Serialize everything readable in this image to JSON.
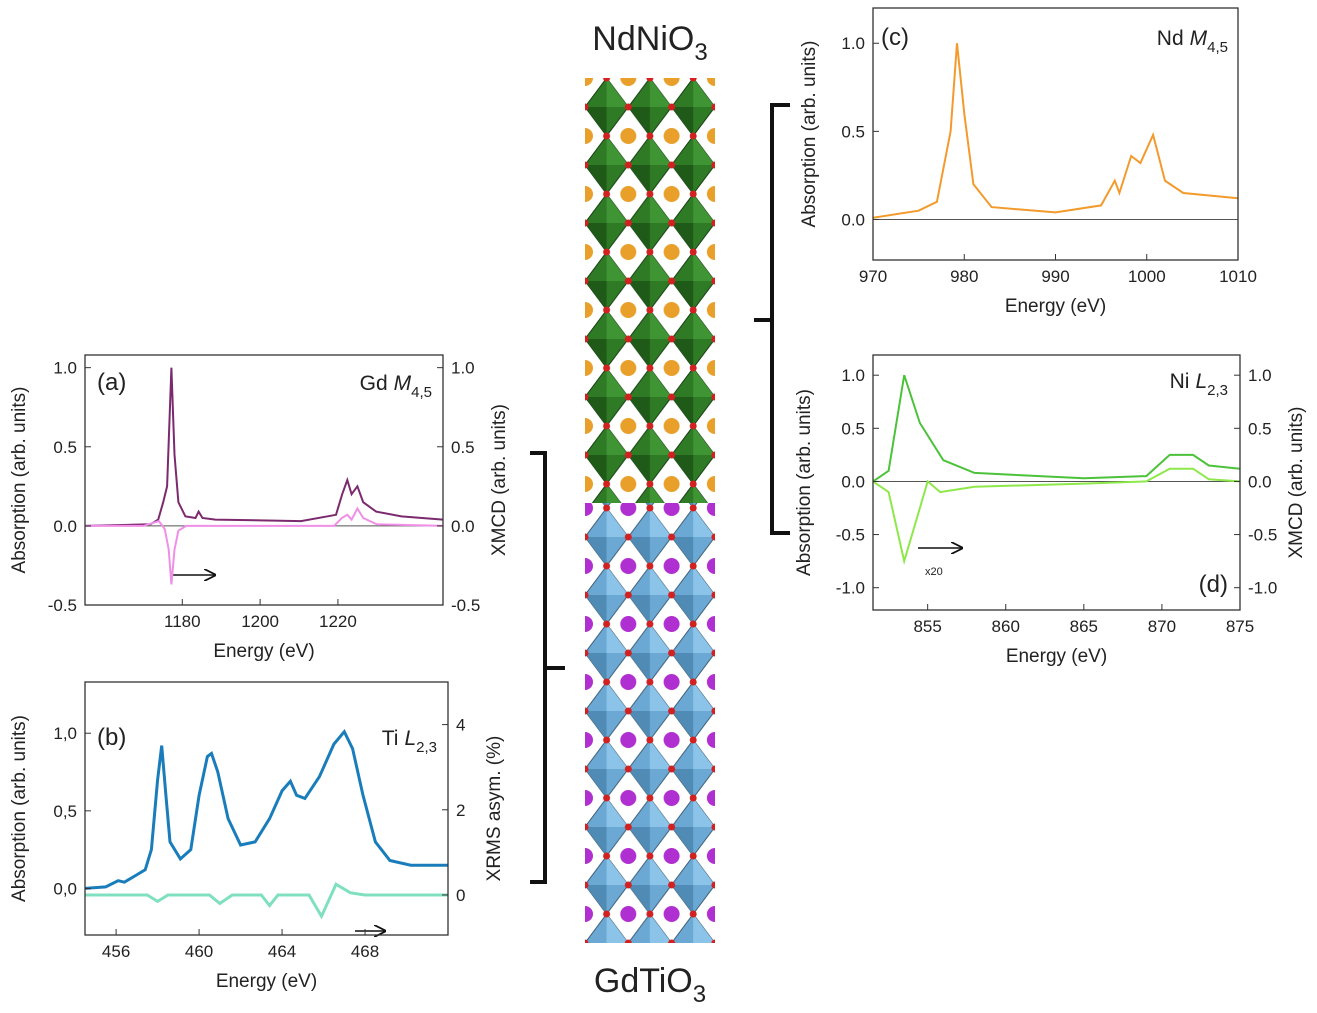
{
  "chart_data": [
    {
      "type": "line",
      "panel_label": "(a)",
      "edge_label": {
        "element": "Gd",
        "edge": "M",
        "subscript": "4,5"
      },
      "xlabel": "Energy (eV)",
      "ylabel": "Absorption (arb. units)",
      "y2label": "XMCD (arb. units)",
      "xlim": [
        1155,
        1247
      ],
      "xticks": [
        1180,
        1200,
        1220
      ],
      "ylim": [
        -0.5,
        1.08
      ],
      "yticks": [
        {
          "value": 1.0,
          "label": "1.0"
        },
        0.5,
        {
          "value": 0,
          "label": "0.0"
        },
        -0.5
      ],
      "y2lim": [
        -0.5,
        1.08
      ],
      "y2ticks": [
        {
          "value": 1.0,
          "label": "1.0"
        },
        0.5,
        {
          "value": 0,
          "label": "0.0"
        },
        -0.5
      ],
      "series": [
        {
          "color": "#7b2a6e",
          "x": [
            1155,
            1171.8,
            1173.8,
            1175.1,
            1176.1,
            1177.2,
            1178,
            1179,
            1180.8,
            1183.4,
            1184.2,
            1185.2,
            1188.5,
            1210.5,
            1219.5,
            1221.1,
            1222.4,
            1223.5,
            1225,
            1226.5,
            1229.8,
            1236.3,
            1247
          ],
          "values": [
            0.0,
            0.01,
            0.04,
            0.15,
            0.25,
            1.0,
            0.45,
            0.15,
            0.06,
            0.05,
            0.09,
            0.05,
            0.04,
            0.03,
            0.07,
            0.2,
            0.29,
            0.2,
            0.25,
            0.15,
            0.09,
            0.06,
            0.04
          ]
        },
        {
          "color": "#f08ee8",
          "axis": "y2",
          "x": [
            1155,
            1170,
            1174,
            1175.5,
            1176.5,
            1177.2,
            1178,
            1179,
            1181,
            1219,
            1221,
            1222.4,
            1223.5,
            1225,
            1226.5,
            1230,
            1247
          ],
          "values": [
            0.0,
            0.0,
            0.03,
            -0.02,
            -0.15,
            -0.37,
            -0.15,
            -0.03,
            0.0,
            0.0,
            0.05,
            0.07,
            0.04,
            0.11,
            0.05,
            0.01,
            0.0
          ]
        }
      ]
    },
    {
      "type": "line",
      "panel_label": "(b)",
      "edge_label": {
        "element": "Ti",
        "edge": "L",
        "subscript": "2,3"
      },
      "xlabel": "Energy (eV)",
      "ylabel": "Absorption (arb. units)",
      "y2label": "XRMS asym. (%)",
      "xlim": [
        454.5,
        472
      ],
      "xticks": [
        456,
        460,
        464,
        468
      ],
      "ylim": [
        -0.3,
        1.33
      ],
      "yticks": [
        {
          "value": 1.0,
          "label": "1,0"
        },
        {
          "value": 0.5,
          "label": "0,5"
        },
        {
          "value": 0,
          "label": "0,0"
        }
      ],
      "y2lim": [
        -0.94,
        5.0
      ],
      "y2ticks": [
        4,
        2,
        0
      ],
      "series": [
        {
          "color": "#1a7dbb",
          "x": [
            454.5,
            455.5,
            456.1,
            456.4,
            456.9,
            457.4,
            457.7,
            458.0,
            458.2,
            458.4,
            458.6,
            459.1,
            459.6,
            460.0,
            460.4,
            460.6,
            460.9,
            461.4,
            462.0,
            462.7,
            463.4,
            464.0,
            464.4,
            464.7,
            465.1,
            465.8,
            466.5,
            467.0,
            467.4,
            467.9,
            468.5,
            469.2,
            470.2,
            472
          ],
          "values": [
            0.0,
            0.01,
            0.05,
            0.04,
            0.08,
            0.12,
            0.25,
            0.7,
            0.92,
            0.6,
            0.3,
            0.19,
            0.25,
            0.6,
            0.85,
            0.87,
            0.75,
            0.45,
            0.28,
            0.3,
            0.45,
            0.63,
            0.69,
            0.6,
            0.58,
            0.72,
            0.93,
            1.01,
            0.9,
            0.6,
            0.3,
            0.18,
            0.15,
            0.15
          ]
        },
        {
          "color": "#7fe0c0",
          "axis": "y2",
          "x": [
            454.5,
            457.5,
            458.0,
            458.5,
            460.5,
            461.0,
            461.6,
            463.0,
            463.4,
            463.8,
            465.3,
            465.9,
            466.6,
            467.3,
            468.0,
            472
          ],
          "values": [
            0.0,
            0.0,
            -0.15,
            0.0,
            0.0,
            -0.2,
            0.0,
            0.0,
            -0.25,
            0.0,
            0.0,
            -0.5,
            0.25,
            0.05,
            0.0,
            0.0
          ]
        }
      ]
    },
    {
      "type": "line",
      "panel_label": "(c)",
      "edge_label": {
        "element": "Nd",
        "edge": "M",
        "subscript": "4,5"
      },
      "xlabel": "Energy (eV)",
      "ylabel": "Absorption (arb. units)",
      "xlim": [
        970,
        1010
      ],
      "xticks": [
        970,
        980,
        990,
        1000,
        1010
      ],
      "ylim": [
        -0.23,
        1.2
      ],
      "yticks": [
        {
          "value": 1.0,
          "label": "1.0"
        },
        0.5,
        {
          "value": 0,
          "label": "0.0"
        }
      ],
      "series": [
        {
          "color": "#f39a2c",
          "x": [
            970,
            975,
            977,
            978.5,
            979.2,
            980,
            981,
            983,
            990,
            995,
            996.5,
            997,
            998.3,
            999.3,
            1000.7,
            1002,
            1004,
            1010
          ],
          "values": [
            0.01,
            0.05,
            0.1,
            0.5,
            1.0,
            0.6,
            0.2,
            0.07,
            0.04,
            0.08,
            0.22,
            0.15,
            0.36,
            0.32,
            0.48,
            0.22,
            0.15,
            0.12
          ]
        }
      ]
    },
    {
      "type": "line",
      "panel_label": "(d)",
      "annotation": "x20",
      "edge_label": {
        "element": "Ni",
        "edge": "L",
        "subscript": "2,3"
      },
      "xlabel": "Energy (eV)",
      "ylabel": "Absorption (arb. units)",
      "y2label": "XMCD (arb. units)",
      "xlim": [
        851.5,
        875
      ],
      "xticks": [
        855,
        860,
        865,
        870,
        875
      ],
      "ylim": [
        -1.21,
        1.19
      ],
      "yticks": [
        {
          "value": 1.0,
          "label": "1.0"
        },
        0.5,
        {
          "value": 0,
          "label": "0.0"
        },
        -0.5,
        {
          "value": -1.0,
          "label": "-1.0"
        }
      ],
      "y2lim": [
        -1.21,
        1.19
      ],
      "y2ticks": [
        {
          "value": 1.0,
          "label": "1.0"
        },
        0.5,
        {
          "value": 0,
          "label": "0.0"
        },
        -0.5,
        {
          "value": -1.0,
          "label": "-1.0"
        }
      ],
      "series": [
        {
          "color": "#4cc23a",
          "x": [
            851.5,
            852.5,
            853.5,
            854.5,
            856,
            858,
            865,
            869,
            870.5,
            872,
            873,
            875
          ],
          "values": [
            0.0,
            0.1,
            1.0,
            0.55,
            0.2,
            0.08,
            0.03,
            0.05,
            0.25,
            0.25,
            0.15,
            0.12
          ]
        },
        {
          "color": "#8ee84a",
          "axis": "y2",
          "x": [
            851.5,
            852.5,
            853.5,
            854.2,
            855,
            855.8,
            858,
            865,
            869,
            870.5,
            872,
            873,
            875
          ],
          "values": [
            0.0,
            -0.1,
            -0.75,
            -0.4,
            0.0,
            -0.1,
            -0.05,
            -0.02,
            0.0,
            0.12,
            0.12,
            0.02,
            0.0
          ]
        }
      ]
    }
  ],
  "structure": {
    "top_label": {
      "formula": "NdNiO",
      "subscript": "3"
    },
    "bottom_label": {
      "formula": "GdTiO",
      "subscript": "3"
    }
  }
}
